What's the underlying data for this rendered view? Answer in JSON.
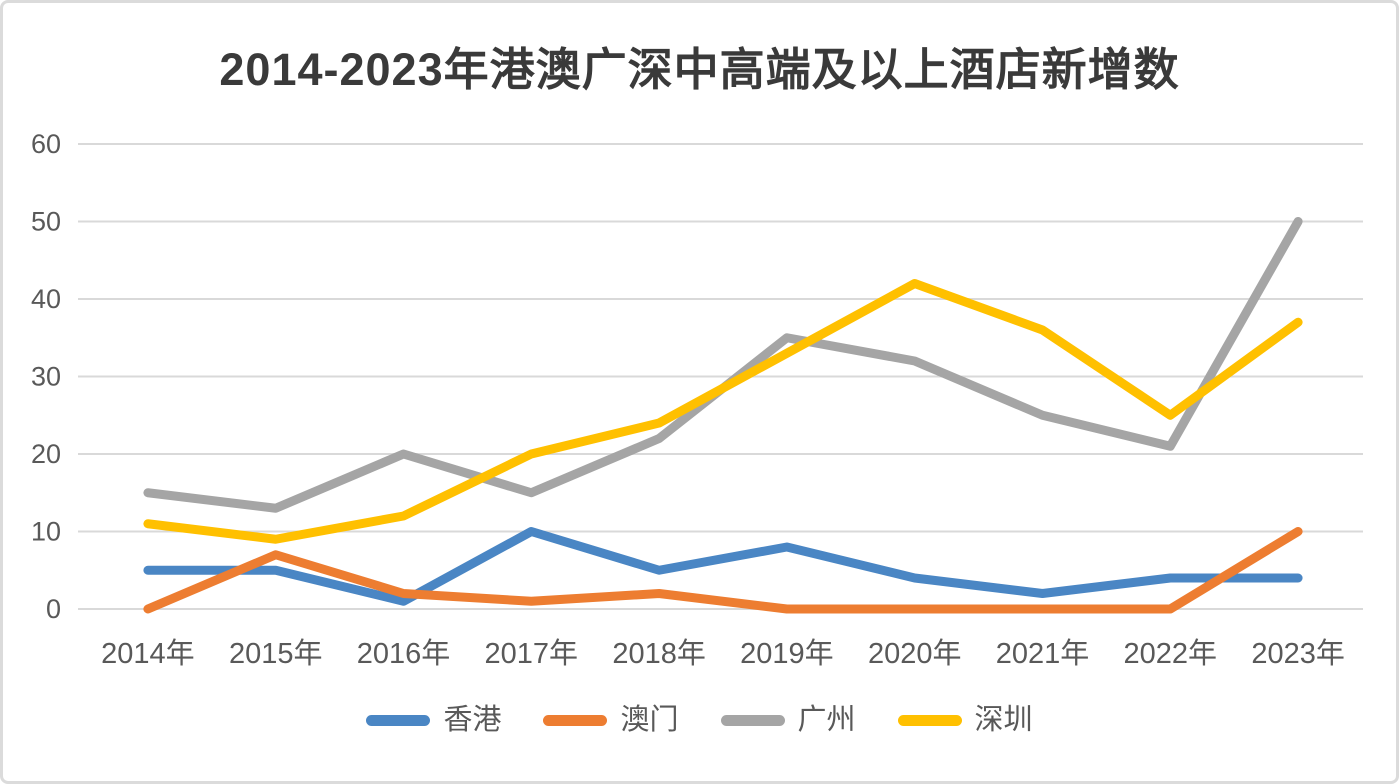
{
  "window": {
    "background": "#ffffff",
    "border_color": "#dbdbdb"
  },
  "chart_data": {
    "type": "line",
    "title": "2014-2023年港澳广深中高端及以上酒店新增数",
    "title_color": "#3a3a3a",
    "categories": [
      "2014年",
      "2015年",
      "2016年",
      "2017年",
      "2018年",
      "2019年",
      "2020年",
      "2021年",
      "2022年",
      "2023年"
    ],
    "series": [
      {
        "name": "香港",
        "key": "hong-kong",
        "color": "#4a86c4",
        "values": [
          5,
          5,
          1,
          10,
          5,
          8,
          4,
          2,
          4,
          4
        ]
      },
      {
        "name": "澳门",
        "key": "macau",
        "color": "#ed7d31",
        "values": [
          0,
          7,
          2,
          1,
          2,
          0,
          0,
          0,
          0,
          10
        ]
      },
      {
        "name": "广州",
        "key": "guangzhou",
        "color": "#a5a5a5",
        "values": [
          15,
          13,
          20,
          15,
          22,
          35,
          32,
          25,
          21,
          50
        ]
      },
      {
        "name": "深圳",
        "key": "shenzhen",
        "color": "#ffc000",
        "values": [
          11,
          9,
          12,
          20,
          24,
          33,
          42,
          36,
          25,
          37
        ]
      }
    ],
    "xlabel": "",
    "ylabel": "",
    "ylim": [
      0,
      60
    ],
    "y_ticks": [
      0,
      10,
      20,
      30,
      40,
      50,
      60
    ],
    "grid": true,
    "gridline_color": "#d9d9d9",
    "axis_label_color": "#595959",
    "legend_position": "bottom",
    "line_width": 9
  }
}
